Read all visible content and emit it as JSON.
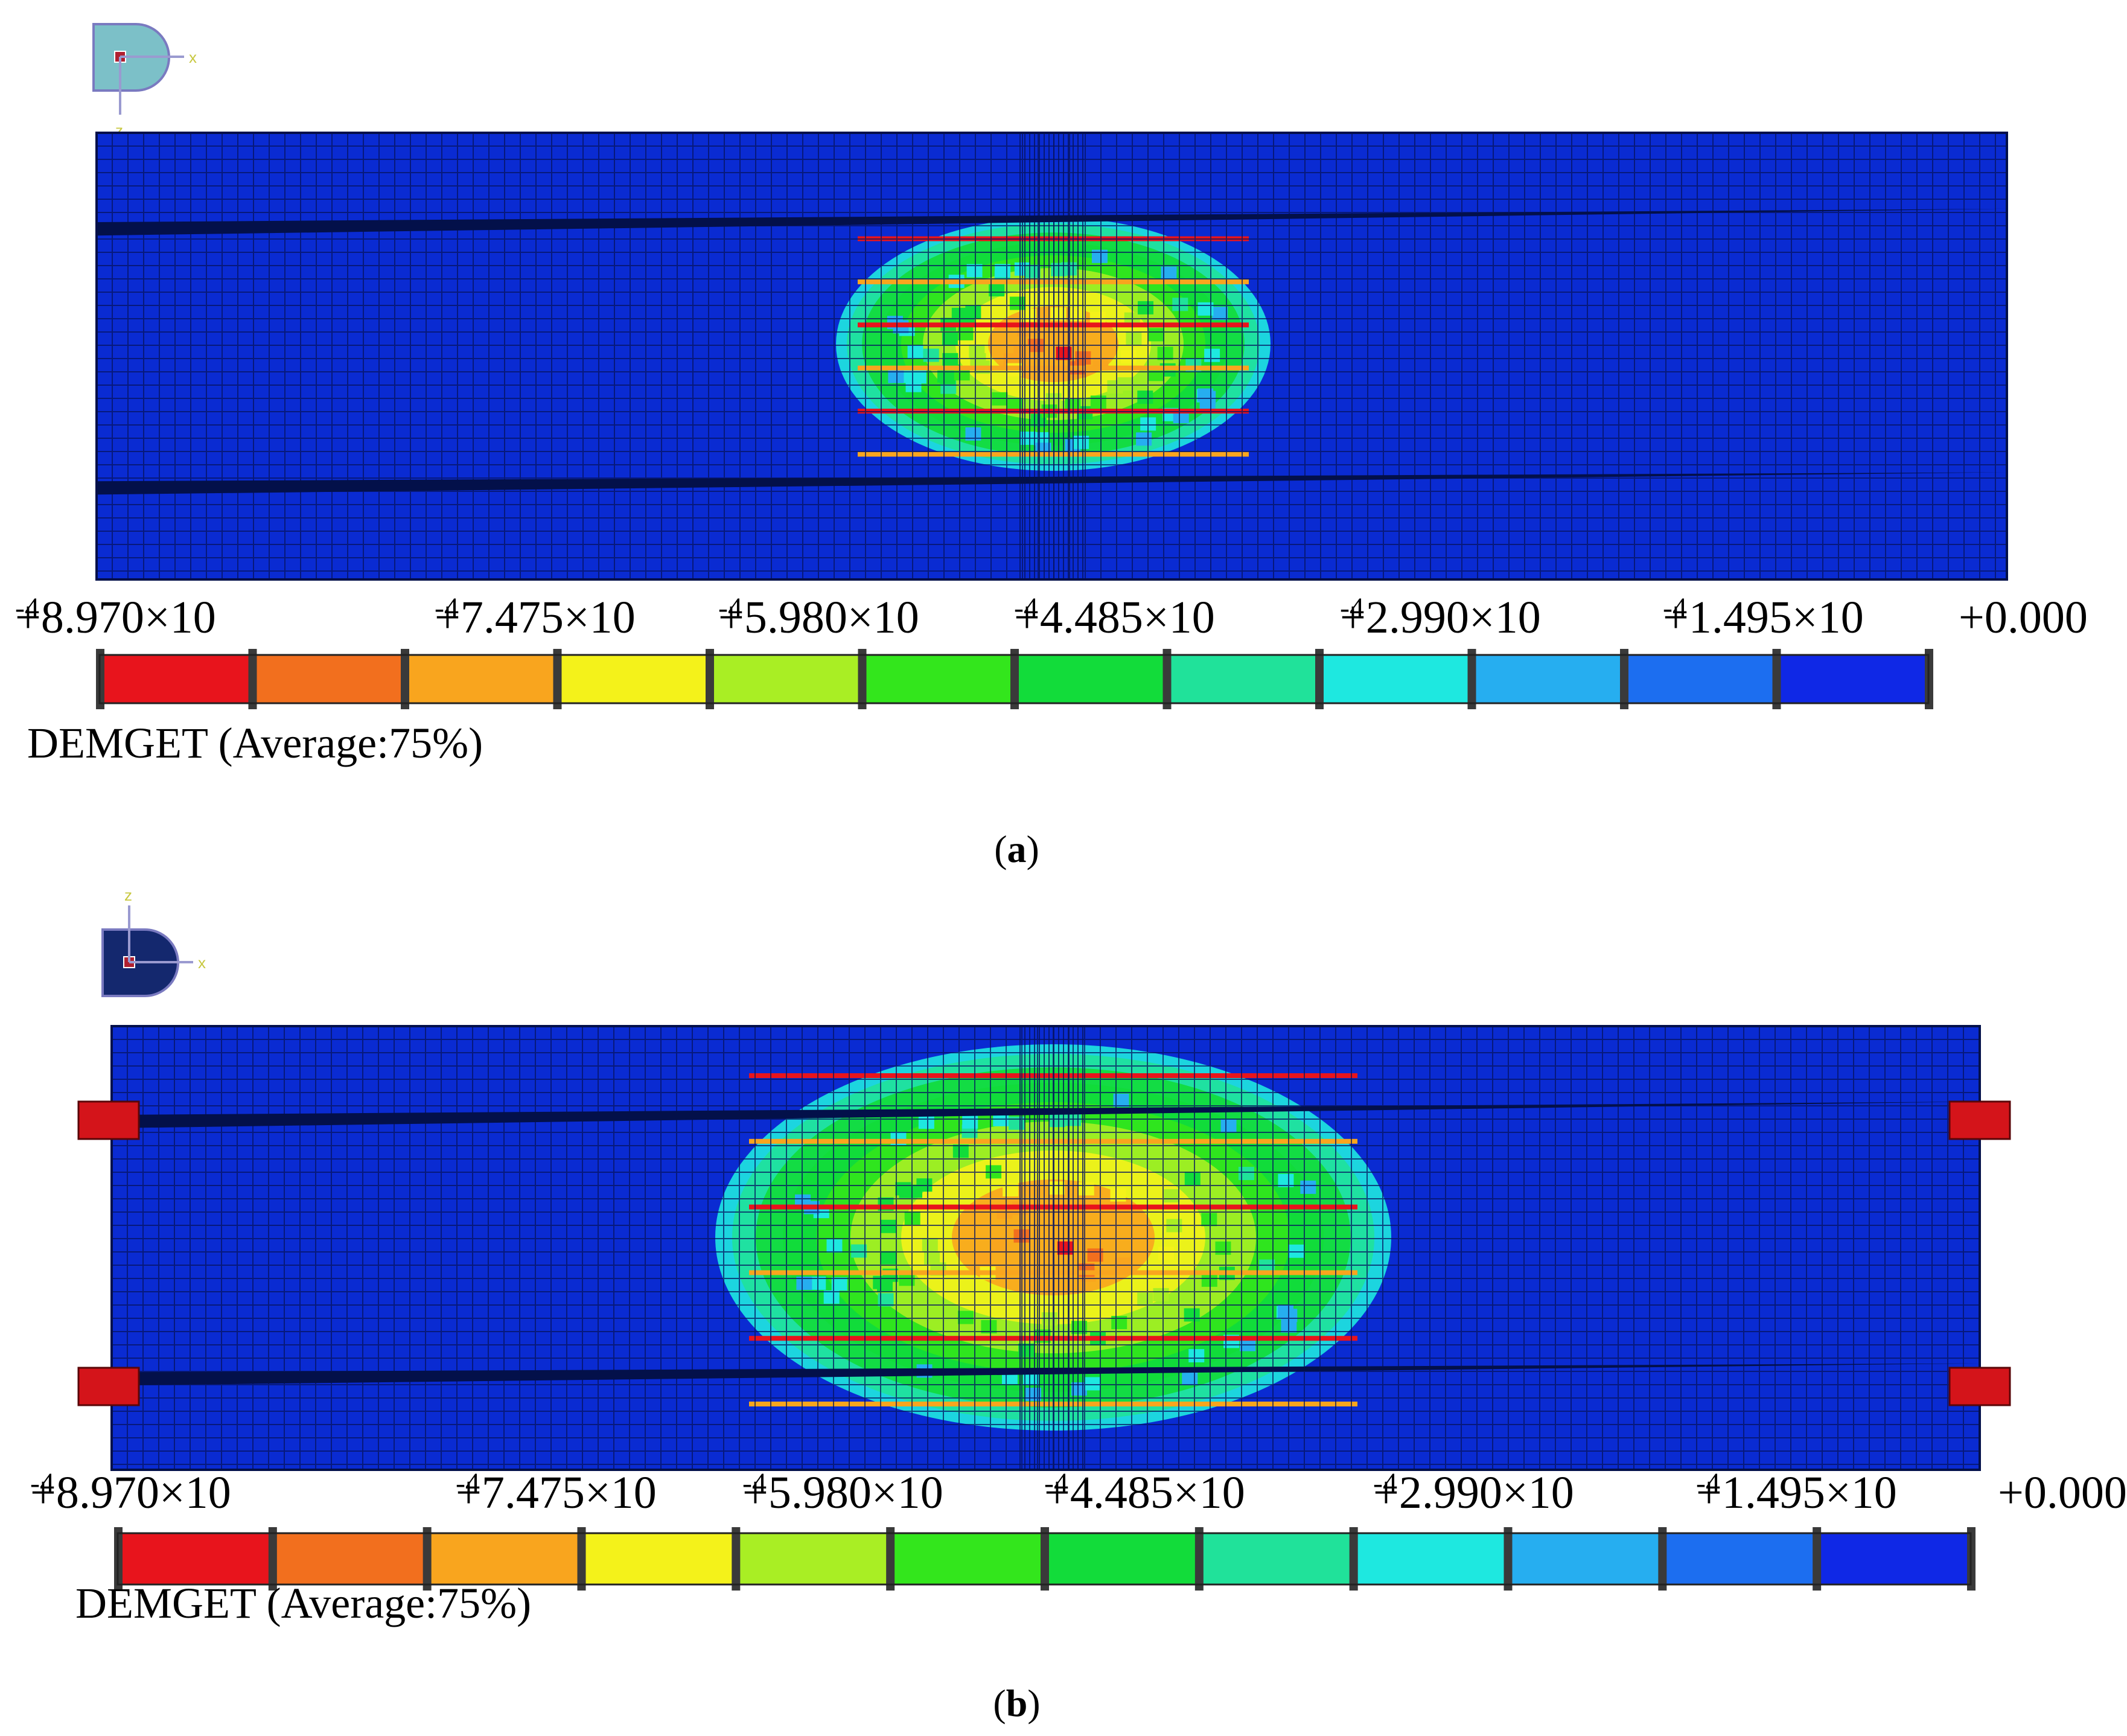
{
  "figure": {
    "panels": [
      {
        "id": "a",
        "caption": "a",
        "legend": {
          "values": [
            "+8.970×10",
            "+7.475×10",
            "+5.980×10",
            "+4.485×10",
            "+2.990×10",
            "+1.495×10",
            "+0.000"
          ],
          "exponents": [
            "-4",
            "-4",
            "-4",
            "-4",
            "-4",
            "-4",
            ""
          ],
          "variable": "DEMGET (Average:75%)"
        },
        "triad_axes": [
          "x",
          "z"
        ]
      },
      {
        "id": "b",
        "caption": "b",
        "legend": {
          "values": [
            "+8.970×10",
            "+7.475×10",
            "+5.980×10",
            "+4.485×10",
            "+2.990×10",
            "+1.495×10",
            "+0.000"
          ],
          "exponents": [
            "-4",
            "-4",
            "-4",
            "-4",
            "-4",
            "-4",
            ""
          ],
          "variable": "DEMGET (Average:75%)"
        },
        "triad_axes": [
          "x",
          "z"
        ]
      }
    ],
    "colormap": [
      "#e8141c",
      "#f26f1e",
      "#f9a51e",
      "#f4f21a",
      "#a9ee24",
      "#33e61c",
      "#12dc3a",
      "#20e29a",
      "#1ee8e0",
      "#26aef0",
      "#1c6ef0",
      "#0f28e6"
    ],
    "mesh_color": "#0a2bd2",
    "mesh_line": "#061460",
    "support_color": "#d4141a"
  }
}
